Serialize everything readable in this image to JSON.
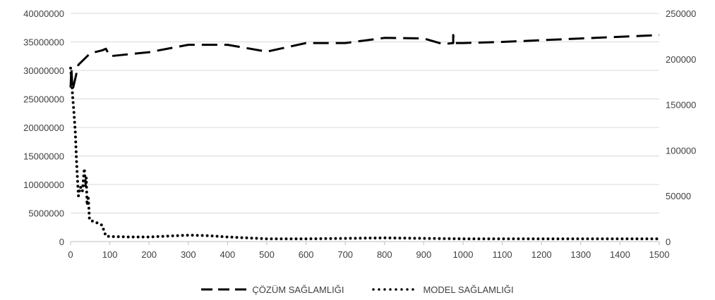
{
  "chart_data": {
    "type": "line",
    "xlim": [
      0,
      1500
    ],
    "x_ticks": [
      "0",
      "100",
      "200",
      "300",
      "400",
      "500",
      "600",
      "700",
      "800",
      "900",
      "1000",
      "1100",
      "1200",
      "1300",
      "1400",
      "1500"
    ],
    "y_left": {
      "lim": [
        0,
        40000000
      ],
      "ticks": [
        "0",
        "5000000",
        "10000000",
        "15000000",
        "20000000",
        "25000000",
        "30000000",
        "35000000",
        "40000000"
      ]
    },
    "y_right": {
      "lim": [
        0,
        250000
      ],
      "ticks": [
        "0",
        "50000",
        "100000",
        "150000",
        "200000",
        "250000"
      ]
    },
    "grid": true,
    "legend_position": "bottom",
    "series": [
      {
        "name": "ÇÖZÜM SAĞLAMLIĞI",
        "axis": "left",
        "style": "dashed",
        "color": "#000000",
        "x": [
          0,
          2,
          5,
          10,
          20,
          50,
          80,
          90,
          100,
          200,
          300,
          400,
          500,
          600,
          700,
          800,
          900,
          950,
          975,
          975,
          980,
          1000,
          1100,
          1200,
          1300,
          1400,
          1500
        ],
        "y": [
          27000000,
          30500000,
          26500000,
          28000000,
          31000000,
          33000000,
          33500000,
          33800000,
          32500000,
          33200000,
          34500000,
          34500000,
          33300000,
          34800000,
          34800000,
          35700000,
          35600000,
          34600000,
          34800000,
          36200000,
          34800000,
          34800000,
          35000000,
          35300000,
          35600000,
          35900000,
          36200000
        ]
      },
      {
        "name": "MODEL SAĞLAMLIĞI",
        "axis": "right",
        "style": "dotted",
        "color": "#000000",
        "x": [
          0,
          3,
          5,
          8,
          12,
          15,
          20,
          25,
          30,
          35,
          38,
          40,
          42,
          45,
          48,
          50,
          60,
          70,
          80,
          90,
          100,
          150,
          200,
          250,
          300,
          350,
          400,
          450,
          500,
          600,
          700,
          800,
          900,
          1000,
          1100,
          1200,
          1300,
          1400,
          1500
        ],
        "y": [
          190000,
          175000,
          160000,
          145000,
          120000,
          90000,
          50000,
          60000,
          55000,
          80000,
          60000,
          70000,
          40000,
          50000,
          25000,
          23000,
          22000,
          20000,
          18000,
          6000,
          5500,
          5000,
          5000,
          6000,
          7000,
          6500,
          5000,
          4000,
          3000,
          3000,
          3500,
          4000,
          3500,
          3000,
          3000,
          3000,
          3000,
          3000,
          3000
        ]
      }
    ]
  }
}
